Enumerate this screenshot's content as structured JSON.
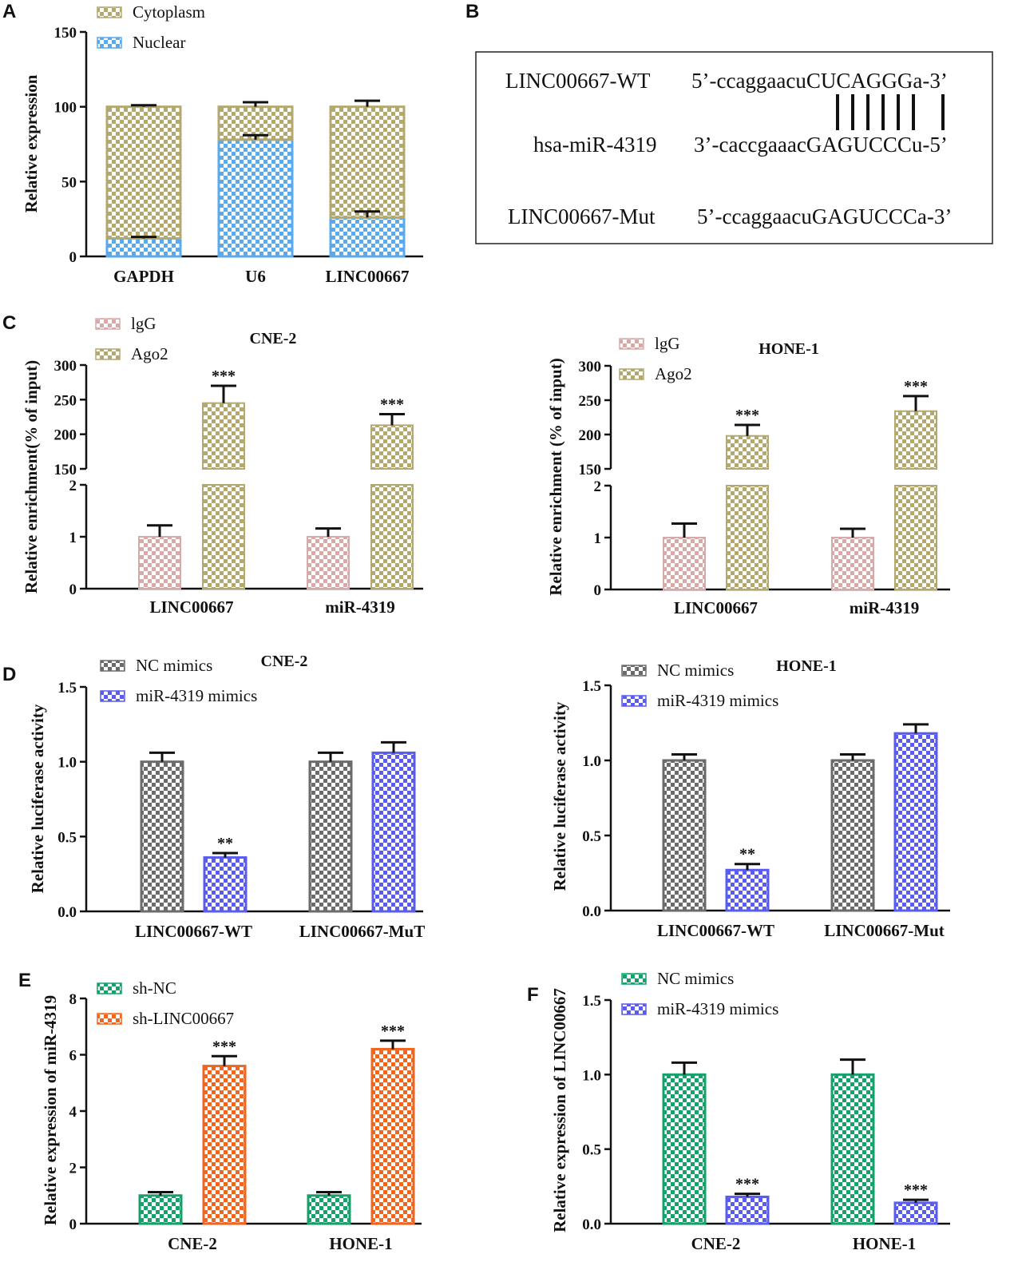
{
  "panels": {
    "A": "A",
    "B": "B",
    "C": "C",
    "D": "D",
    "E": "E",
    "F": "F"
  },
  "colors": {
    "cytoplasm": "#b3a86f",
    "nuclear": "#5aa9ec",
    "igg": "#d8a9a9",
    "ago2": "#b3a86f",
    "nc_gray": "#6b6b6b",
    "mir_blue": "#5a5cf0",
    "sh_green": "#16a06a",
    "sh_orange": "#f2651f",
    "f_green": "#16a06a",
    "f_blue": "#5a5cf0"
  },
  "sequences": {
    "wt_label": "LINC00667-WT",
    "wt_seq": "5’-ccaggaacuCUCAGGGa-3’",
    "mir_label": "hsa-miR-4319",
    "mir_seq": "3’-caccgaaacGAGUCCCu-5’",
    "mut_label": "LINC00667-Mut",
    "mut_seq": "5’-ccaggaacuGAGUCCCa-3’"
  },
  "chart_data": [
    {
      "id": "A",
      "type": "bar",
      "stacked": true,
      "title": "",
      "xlabel": "",
      "ylabel": "Relative expression",
      "ylim": [
        0,
        150
      ],
      "yticks": [
        "0",
        "50",
        "100",
        "150"
      ],
      "categories": [
        "GAPDH",
        "U6",
        "LINC00667"
      ],
      "series": [
        {
          "name": "Cytoplasm",
          "values": [
            88,
            22,
            74
          ],
          "errors": [
            1,
            3,
            4
          ]
        },
        {
          "name": "Nuclear",
          "values": [
            12,
            78,
            26
          ],
          "errors": [
            1,
            3,
            4
          ]
        }
      ]
    },
    {
      "id": "C1",
      "type": "bar",
      "broken_axis": true,
      "title": "CNE-2",
      "ylabel": "Relative enrichment(% of input)",
      "lower_ylim": [
        0,
        2
      ],
      "upper_ylim": [
        150,
        300
      ],
      "lower_yticks": [
        "0",
        "1",
        "2"
      ],
      "upper_yticks": [
        "150",
        "200",
        "250",
        "300"
      ],
      "categories": [
        "LINC00667",
        "miR-4319"
      ],
      "series": [
        {
          "name": "lgG",
          "values": [
            1.0,
            1.0
          ],
          "errors": [
            0.22,
            0.16
          ]
        },
        {
          "name": "Ago2",
          "values": [
            245,
            213
          ],
          "errors": [
            25,
            16
          ]
        }
      ],
      "annotations": [
        "***",
        "***"
      ]
    },
    {
      "id": "C2",
      "type": "bar",
      "broken_axis": true,
      "title": "HONE-1",
      "ylabel": "Relative enrichment (% of input)",
      "lower_ylim": [
        0,
        2
      ],
      "upper_ylim": [
        150,
        300
      ],
      "lower_yticks": [
        "0",
        "1",
        "2"
      ],
      "upper_yticks": [
        "150",
        "200",
        "250",
        "300"
      ],
      "categories": [
        "LINC00667",
        "miR-4319"
      ],
      "series": [
        {
          "name": "lgG",
          "values": [
            1.0,
            1.0
          ],
          "errors": [
            0.27,
            0.17
          ]
        },
        {
          "name": "Ago2",
          "values": [
            198,
            234
          ],
          "errors": [
            16,
            22
          ]
        }
      ],
      "annotations": [
        "***",
        "***"
      ]
    },
    {
      "id": "D1",
      "type": "bar",
      "title": "CNE-2",
      "ylabel": "Relative luciferase activity",
      "ylim": [
        0,
        1.5
      ],
      "yticks": [
        "0.0",
        "0.5",
        "1.0",
        "1.5"
      ],
      "categories": [
        "LINC00667-WT",
        "LINC00667-MuT"
      ],
      "series": [
        {
          "name": "NC mimics",
          "values": [
            1.0,
            1.0
          ],
          "errors": [
            0.06,
            0.06
          ]
        },
        {
          "name": "miR-4319 mimics",
          "values": [
            0.36,
            1.06
          ],
          "errors": [
            0.03,
            0.07
          ]
        }
      ],
      "annotations": [
        "**",
        ""
      ]
    },
    {
      "id": "D2",
      "type": "bar",
      "title": "HONE-1",
      "ylabel": "Relative luciferase activity",
      "ylim": [
        0,
        1.5
      ],
      "yticks": [
        "0.0",
        "0.5",
        "1.0",
        "1.5"
      ],
      "categories": [
        "LINC00667-WT",
        "LINC00667-Mut"
      ],
      "series": [
        {
          "name": "NC mimics",
          "values": [
            1.0,
            1.0
          ],
          "errors": [
            0.04,
            0.04
          ]
        },
        {
          "name": "miR-4319 mimics",
          "values": [
            0.27,
            1.18
          ],
          "errors": [
            0.04,
            0.06
          ]
        }
      ],
      "annotations": [
        "**",
        ""
      ]
    },
    {
      "id": "E",
      "type": "bar",
      "title": "",
      "ylabel": "Relative expression of miR-4319",
      "ylim": [
        0,
        8
      ],
      "yticks": [
        "0",
        "2",
        "4",
        "6",
        "8"
      ],
      "categories": [
        "CNE-2",
        "HONE-1"
      ],
      "series": [
        {
          "name": "sh-NC",
          "values": [
            1.0,
            1.0
          ],
          "errors": [
            0.12,
            0.12
          ]
        },
        {
          "name": "sh-LINC00667",
          "values": [
            5.6,
            6.2
          ],
          "errors": [
            0.35,
            0.3
          ]
        }
      ],
      "annotations": [
        "***",
        "***"
      ]
    },
    {
      "id": "F",
      "type": "bar",
      "title": "",
      "ylabel": "Relative expression of LINC00667",
      "ylim": [
        0,
        1.5
      ],
      "yticks": [
        "0.0",
        "0.5",
        "1.0",
        "1.5"
      ],
      "categories": [
        "CNE-2",
        "HONE-1"
      ],
      "series": [
        {
          "name": "NC mimics",
          "values": [
            1.0,
            1.0
          ],
          "errors": [
            0.08,
            0.1
          ]
        },
        {
          "name": "miR-4319 mimics",
          "values": [
            0.18,
            0.14
          ],
          "errors": [
            0.02,
            0.02
          ]
        }
      ],
      "annotations": [
        "***",
        "***"
      ]
    }
  ]
}
